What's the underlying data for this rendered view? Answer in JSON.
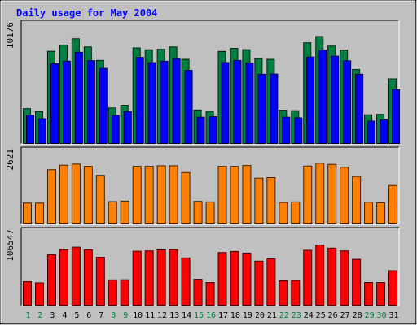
{
  "chart_data": {
    "type": "bar",
    "title": "Daily usage for May 2004",
    "categories": [
      "1",
      "2",
      "3",
      "4",
      "5",
      "6",
      "7",
      "8",
      "9",
      "10",
      "11",
      "12",
      "13",
      "14",
      "15",
      "16",
      "17",
      "18",
      "19",
      "20",
      "21",
      "22",
      "23",
      "24",
      "25",
      "26",
      "27",
      "28",
      "29",
      "30",
      "31"
    ],
    "weekend_days": [
      "1",
      "2",
      "8",
      "9",
      "15",
      "16",
      "22",
      "23",
      "29",
      "30"
    ],
    "panels": [
      {
        "id": "hits-files",
        "ymax_label": "10176",
        "ylim": [
          0,
          10176
        ],
        "series": [
          {
            "color": "#008040",
            "values": [
              3010,
              2760,
              7860,
              8380,
              8920,
              8230,
              7090,
              3070,
              3300,
              8150,
              7990,
              8030,
              8230,
              7180,
              2900,
              2790,
              7850,
              8110,
              8000,
              7240,
              7180,
              2880,
              2840,
              8580,
              9110,
              8300,
              7960,
              6320,
              2490,
              2530,
              5530
            ]
          },
          {
            "color": "#0000ff",
            "values": [
              2460,
              2160,
              6800,
              7030,
              7780,
              7070,
              6420,
              2440,
              2760,
              7350,
              6900,
              7020,
              7210,
              6250,
              2290,
              2330,
              6910,
              7090,
              6870,
              5920,
              5940,
              2290,
              2230,
              7380,
              7960,
              7450,
              7060,
              5920,
              1960,
              2060,
              4630
            ]
          }
        ]
      },
      {
        "id": "pages",
        "ymax_label": "2621",
        "ylim": [
          0,
          2621
        ],
        "series": [
          {
            "color": "#ff8000",
            "values": [
              770,
              770,
              1950,
              2110,
              2150,
              2070,
              1750,
              820,
              840,
              2070,
              2070,
              2090,
              2090,
              1850,
              830,
              810,
              2070,
              2070,
              2100,
              1650,
              1670,
              790,
              810,
              2080,
              2180,
              2140,
              2040,
              1710,
              800,
              780,
              1390
            ]
          }
        ]
      },
      {
        "id": "sites",
        "ymax_label": "106547",
        "ylim": [
          0,
          106547
        ],
        "series": [
          {
            "color": "#ff0000",
            "values": [
              34640,
              33060,
              72900,
              80170,
              83800,
              80150,
              69480,
              37250,
              37400,
              78010,
              78450,
              79870,
              80340,
              68500,
              38120,
              33520,
              76130,
              77700,
              75380,
              63920,
              67080,
              35880,
              36400,
              79350,
              86850,
              82440,
              78450,
              66500,
              33520,
              33470,
              50320
            ]
          }
        ]
      }
    ]
  }
}
